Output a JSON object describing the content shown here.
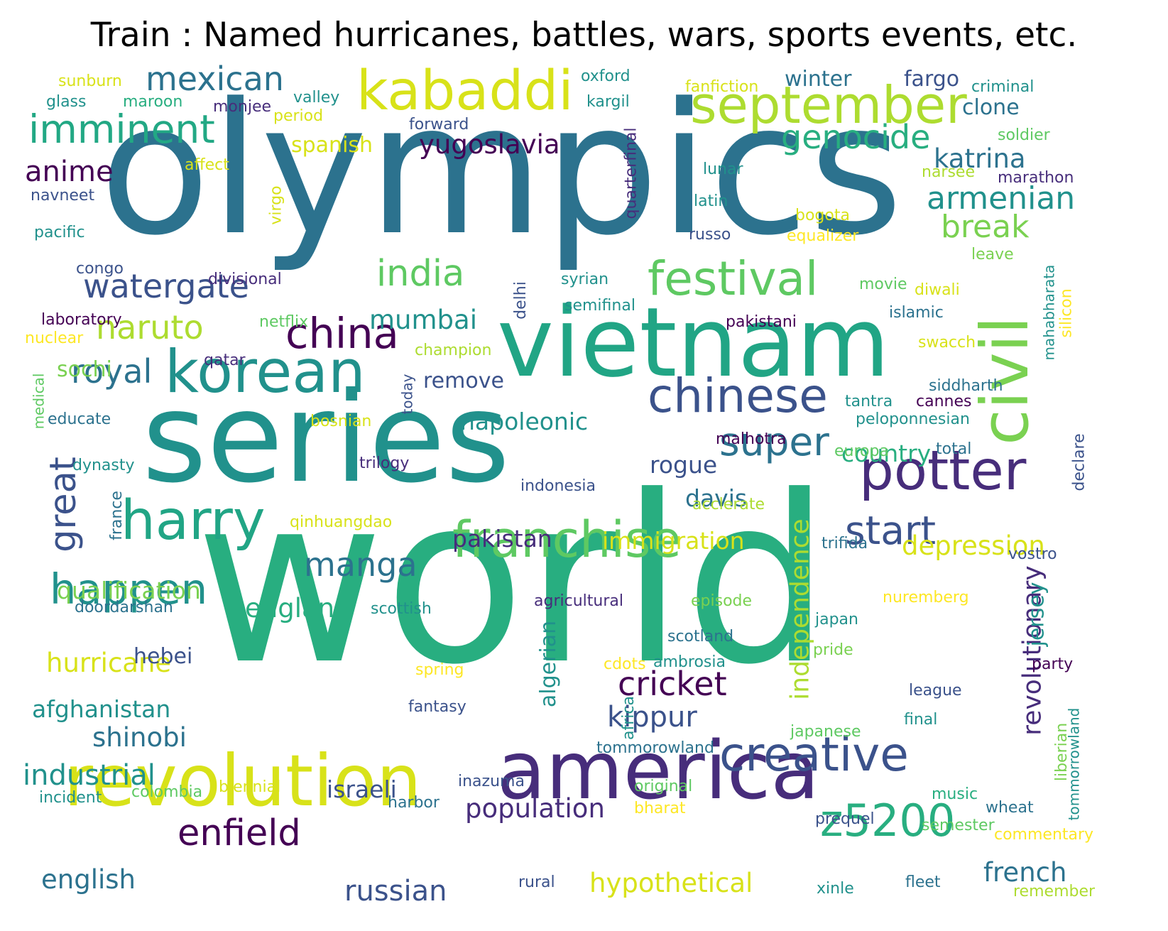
{
  "title": "Train : Named hurricanes, battles, wars, sports events, etc.",
  "palette": {
    "c1": "#440154",
    "c2": "#472d7b",
    "c3": "#3b528b",
    "c4": "#2c728e",
    "c5": "#21918c",
    "c6": "#28ae80",
    "c7": "#5ec962",
    "c8": "#addc30",
    "c9": "#d8e219",
    "c10": "#fde725"
  },
  "words": [
    {
      "text": "world",
      "color": "#28ae80"
    },
    {
      "text": "olympics",
      "color": "#2c728e"
    },
    {
      "text": "series",
      "color": "#21918c"
    },
    {
      "text": "vietnam",
      "color": "#21a585"
    },
    {
      "text": "america",
      "color": "#472d7b"
    },
    {
      "text": "revolution",
      "color": "#d8e219"
    },
    {
      "text": "korean",
      "color": "#21918c"
    },
    {
      "text": "kabaddi",
      "color": "#d8e219"
    },
    {
      "text": "september",
      "color": "#addc30"
    },
    {
      "text": "civil",
      "color": "#7ad151"
    },
    {
      "text": "harry",
      "color": "#21a585"
    },
    {
      "text": "potter",
      "color": "#472d7b"
    },
    {
      "text": "franchise",
      "color": "#5ec962"
    },
    {
      "text": "creative",
      "color": "#3b528b"
    },
    {
      "text": "chinese",
      "color": "#3b528b"
    },
    {
      "text": "festival",
      "color": "#5ec962"
    },
    {
      "text": "imminent",
      "color": "#22a884"
    },
    {
      "text": "mexican",
      "color": "#2c728e"
    },
    {
      "text": "z5200",
      "color": "#28ae80"
    },
    {
      "text": "happen",
      "color": "#21918c"
    },
    {
      "text": "china",
      "color": "#440154"
    },
    {
      "text": "india",
      "color": "#5ec962"
    },
    {
      "text": "start",
      "color": "#3b528b"
    },
    {
      "text": "super",
      "color": "#2c728e"
    },
    {
      "text": "enfield",
      "color": "#440154"
    },
    {
      "text": "royal",
      "color": "#2c728e"
    },
    {
      "text": "watergate",
      "color": "#3b528b"
    },
    {
      "text": "naruto",
      "color": "#addc30"
    },
    {
      "text": "genocide",
      "color": "#28ae80"
    },
    {
      "text": "armenian",
      "color": "#21918c"
    },
    {
      "text": "break",
      "color": "#7ad151"
    },
    {
      "text": "manga",
      "color": "#2c728e"
    },
    {
      "text": "cricket",
      "color": "#440154"
    },
    {
      "text": "kippur",
      "color": "#3b528b"
    },
    {
      "text": "great",
      "color": "#3b528b"
    },
    {
      "text": "katrina",
      "color": "#2c728e"
    },
    {
      "text": "yugoslavia",
      "color": "#440154"
    },
    {
      "text": "anime",
      "color": "#440154"
    },
    {
      "text": "independence",
      "color": "#addc30"
    },
    {
      "text": "revolutionary",
      "color": "#472d7b"
    },
    {
      "text": "industrial",
      "color": "#21918c"
    },
    {
      "text": "russian",
      "color": "#3b528b"
    },
    {
      "text": "english",
      "color": "#2c728e"
    },
    {
      "text": "hypothetical",
      "color": "#d8e219"
    },
    {
      "text": "population",
      "color": "#472d7b"
    },
    {
      "text": "french",
      "color": "#2c728e"
    },
    {
      "text": "depression",
      "color": "#d8e219"
    },
    {
      "text": "mumbai",
      "color": "#21918c"
    },
    {
      "text": "hurricane",
      "color": "#d8e219"
    },
    {
      "text": "england",
      "color": "#28ae80"
    },
    {
      "text": "shinobi",
      "color": "#2c728e"
    },
    {
      "text": "afghanistan",
      "color": "#21918c"
    },
    {
      "text": "qualification",
      "color": "#7ad151"
    },
    {
      "text": "immigration",
      "color": "#d8e219"
    },
    {
      "text": "pakistan",
      "color": "#472d7b"
    },
    {
      "text": "napoleonic",
      "color": "#21918c"
    },
    {
      "text": "israeli",
      "color": "#3b528b"
    },
    {
      "text": "country",
      "color": "#28ae80"
    },
    {
      "text": "davis",
      "color": "#2c728e"
    },
    {
      "text": "rogue",
      "color": "#3b528b"
    },
    {
      "text": "hebei",
      "color": "#3b528b"
    },
    {
      "text": "jersey",
      "color": "#21918c"
    },
    {
      "text": "algerian",
      "color": "#21918c"
    },
    {
      "text": "sochi",
      "color": "#7ad151"
    },
    {
      "text": "spanish",
      "color": "#d8e219"
    },
    {
      "text": "remove",
      "color": "#3b528b"
    },
    {
      "text": "fargo",
      "color": "#3b528b"
    },
    {
      "text": "winter",
      "color": "#2c728e"
    },
    {
      "text": "clone",
      "color": "#2c728e"
    },
    {
      "text": "sunburn",
      "color": "#d8e219"
    },
    {
      "text": "glass",
      "color": "#21918c"
    },
    {
      "text": "maroon",
      "color": "#28ae80"
    },
    {
      "text": "valley",
      "color": "#21918c"
    },
    {
      "text": "oxford",
      "color": "#21918c"
    },
    {
      "text": "kargil",
      "color": "#21918c"
    },
    {
      "text": "monjee",
      "color": "#472d7b"
    },
    {
      "text": "period",
      "color": "#d8e219"
    },
    {
      "text": "forward",
      "color": "#3b528b"
    },
    {
      "text": "fanfiction",
      "color": "#d8e219"
    },
    {
      "text": "criminal",
      "color": "#21918c"
    },
    {
      "text": "soldier",
      "color": "#5ec962"
    },
    {
      "text": "narsee",
      "color": "#addc30"
    },
    {
      "text": "marathon",
      "color": "#472d7b"
    },
    {
      "text": "affect",
      "color": "#d8e219"
    },
    {
      "text": "navneet",
      "color": "#3b528b"
    },
    {
      "text": "virgo",
      "color": "#d8e219"
    },
    {
      "text": "quarterfinal",
      "color": "#472d7b"
    },
    {
      "text": "lunar",
      "color": "#21918c"
    },
    {
      "text": "latin",
      "color": "#21918c"
    },
    {
      "text": "russo",
      "color": "#3b528b"
    },
    {
      "text": "bogota",
      "color": "#d8e219"
    },
    {
      "text": "equalizer",
      "color": "#fde725"
    },
    {
      "text": "leave",
      "color": "#7ad151"
    },
    {
      "text": "pacific",
      "color": "#21918c"
    },
    {
      "text": "congo",
      "color": "#3b528b"
    },
    {
      "text": "divisional",
      "color": "#472d7b"
    },
    {
      "text": "delhi",
      "color": "#3b528b"
    },
    {
      "text": "syrian",
      "color": "#21918c"
    },
    {
      "text": "semifinal",
      "color": "#21918c"
    },
    {
      "text": "movie",
      "color": "#5ec962"
    },
    {
      "text": "diwali",
      "color": "#d8e219"
    },
    {
      "text": "mahabharata",
      "color": "#21918c"
    },
    {
      "text": "silicon",
      "color": "#fde725"
    },
    {
      "text": "islamic",
      "color": "#2c728e"
    },
    {
      "text": "pakistani",
      "color": "#440154"
    },
    {
      "text": "laboratory",
      "color": "#440154"
    },
    {
      "text": "netflix",
      "color": "#5ec962"
    },
    {
      "text": "nuclear",
      "color": "#fde725"
    },
    {
      "text": "champion",
      "color": "#addc30"
    },
    {
      "text": "swacch",
      "color": "#d8e219"
    },
    {
      "text": "qatar",
      "color": "#472d7b"
    },
    {
      "text": "medical",
      "color": "#5ec962"
    },
    {
      "text": "today",
      "color": "#3b528b"
    },
    {
      "text": "siddharth",
      "color": "#2c728e"
    },
    {
      "text": "educate",
      "color": "#2c728e"
    },
    {
      "text": "bosnian",
      "color": "#d8e219"
    },
    {
      "text": "tantra",
      "color": "#21918c"
    },
    {
      "text": "cannes",
      "color": "#440154"
    },
    {
      "text": "peloponnesian",
      "color": "#21918c"
    },
    {
      "text": "malhotra",
      "color": "#440154"
    },
    {
      "text": "europa",
      "color": "#5ec962"
    },
    {
      "text": "total",
      "color": "#2c728e"
    },
    {
      "text": "declare",
      "color": "#3b528b"
    },
    {
      "text": "dynasty",
      "color": "#21918c"
    },
    {
      "text": "trilogy",
      "color": "#472d7b"
    },
    {
      "text": "france",
      "color": "#2c728e"
    },
    {
      "text": "indonesia",
      "color": "#3b528b"
    },
    {
      "text": "acclerate",
      "color": "#addc30"
    },
    {
      "text": "qinhuangdao",
      "color": "#d8e219"
    },
    {
      "text": "trifida",
      "color": "#2c728e"
    },
    {
      "text": "vostro",
      "color": "#3b528b"
    },
    {
      "text": "doordarshan",
      "color": "#2c728e"
    },
    {
      "text": "scottish",
      "color": "#21918c"
    },
    {
      "text": "agricultural",
      "color": "#472d7b"
    },
    {
      "text": "episode",
      "color": "#7ad151"
    },
    {
      "text": "nuremberg",
      "color": "#fde725"
    },
    {
      "text": "japan",
      "color": "#21918c"
    },
    {
      "text": "scotland",
      "color": "#2c728e"
    },
    {
      "text": "pride",
      "color": "#7ad151"
    },
    {
      "text": "party",
      "color": "#440154"
    },
    {
      "text": "spring",
      "color": "#fde725"
    },
    {
      "text": "cdots",
      "color": "#fde725"
    },
    {
      "text": "ambrosia",
      "color": "#21918c"
    },
    {
      "text": "fantasy",
      "color": "#3b528b"
    },
    {
      "text": "africa",
      "color": "#21918c"
    },
    {
      "text": "league",
      "color": "#3b528b"
    },
    {
      "text": "final",
      "color": "#21918c"
    },
    {
      "text": "liberian",
      "color": "#7ad151"
    },
    {
      "text": "tommorowland",
      "color": "#2c728e"
    },
    {
      "text": "japanese",
      "color": "#5ec962"
    },
    {
      "text": "tommorrowland",
      "color": "#21918c"
    },
    {
      "text": "incident",
      "color": "#21918c"
    },
    {
      "text": "colombia",
      "color": "#5ec962"
    },
    {
      "text": "biennial",
      "color": "#d8e219"
    },
    {
      "text": "inazuma",
      "color": "#3b528b"
    },
    {
      "text": "harbor",
      "color": "#2c728e"
    },
    {
      "text": "original",
      "color": "#5ec962"
    },
    {
      "text": "bharat",
      "color": "#fde725"
    },
    {
      "text": "music",
      "color": "#28ae80"
    },
    {
      "text": "wheat",
      "color": "#2c728e"
    },
    {
      "text": "prequel",
      "color": "#3b528b"
    },
    {
      "text": "semester",
      "color": "#5ec962"
    },
    {
      "text": "commentary",
      "color": "#fde725"
    },
    {
      "text": "rural",
      "color": "#3b528b"
    },
    {
      "text": "xinle",
      "color": "#21918c"
    },
    {
      "text": "fleet",
      "color": "#2c728e"
    },
    {
      "text": "remember",
      "color": "#addc30"
    }
  ]
}
